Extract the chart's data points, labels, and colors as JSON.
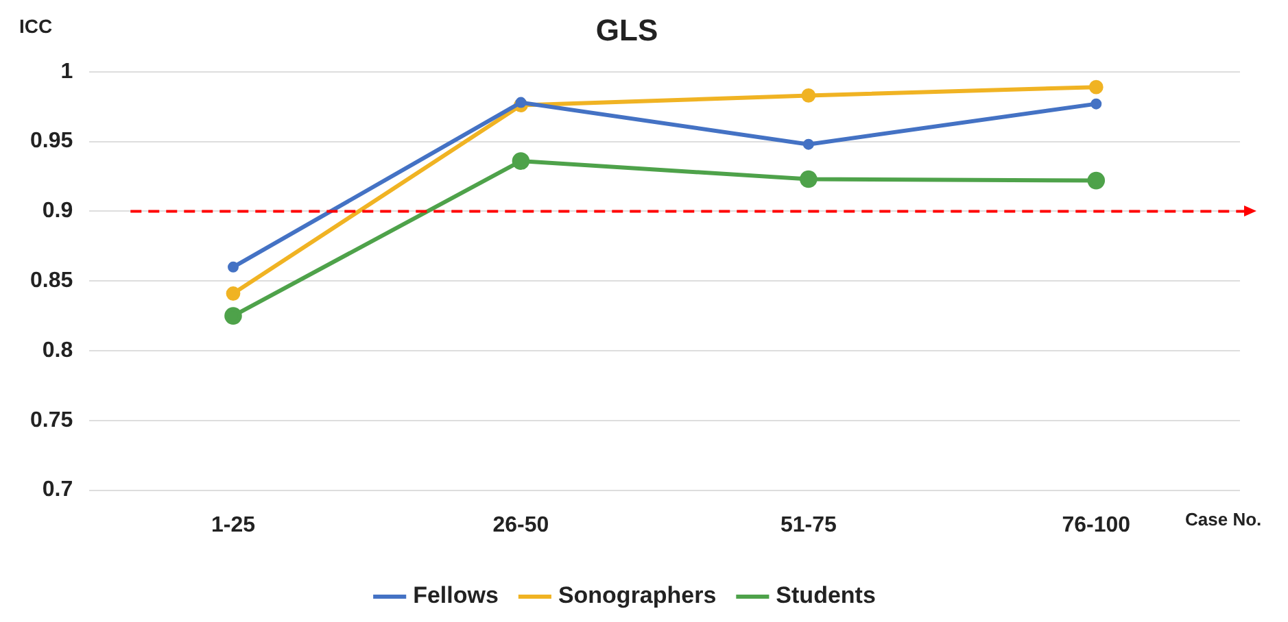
{
  "chart_data": {
    "type": "line",
    "title": "GLS",
    "xlabel": "Case No.",
    "ylabel": "ICC",
    "categories": [
      "1-25",
      "26-50",
      "51-75",
      "76-100"
    ],
    "series": [
      {
        "name": "Fellows",
        "color": "#4472c4",
        "values": [
          0.86,
          0.978,
          0.948,
          0.977
        ]
      },
      {
        "name": "Sonographers",
        "color": "#f0b323",
        "values": [
          0.841,
          0.976,
          0.983,
          0.989
        ]
      },
      {
        "name": "Students",
        "color": "#4ea24a",
        "values": [
          0.825,
          0.936,
          0.923,
          0.922
        ]
      }
    ],
    "ylim": [
      0.7,
      1
    ],
    "yticks": [
      0.7,
      0.75,
      0.8,
      0.85,
      0.9,
      0.95,
      1
    ],
    "ref_lines": [
      {
        "axis": "y",
        "value": 0.9,
        "color": "#ff0000",
        "line_style": "dashed"
      }
    ],
    "grid": "y",
    "legend": "bottom",
    "marker": "circle",
    "line_style": "solid"
  }
}
